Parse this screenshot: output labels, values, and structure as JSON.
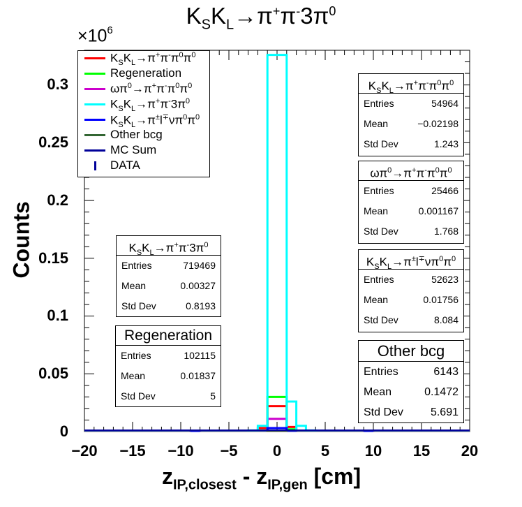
{
  "title": "K_S K_L → π⁺π⁻3π⁰",
  "title_parts": {
    "a": "K",
    "a_sub": "S",
    "b": "K",
    "b_sub": "L",
    "c": "→π",
    "c_sup1": "+",
    "d": "π",
    "d_sup": "-",
    "e": "3π",
    "e_sup": "0"
  },
  "axes": {
    "xlabel": {
      "a": "z",
      "a_sub": "IP,closest",
      "b": " - z",
      "b_sub": "IP,gen",
      "c": " [cm]"
    },
    "ylabel": "Counts",
    "exponent": {
      "base": "×10",
      "power": "6"
    },
    "xlim": [
      -20,
      20
    ],
    "ylim": [
      0,
      0.33
    ],
    "xticks": [
      "−20",
      "−15",
      "−10",
      "−5",
      "0",
      "5",
      "10",
      "15",
      "20"
    ],
    "yticks": [
      "0",
      "0.05",
      "0.1",
      "0.15",
      "0.2",
      "0.25",
      "0.3"
    ]
  },
  "chart_data": {
    "type": "histogram",
    "y_scale_factor": 1000000,
    "bin_width": 2,
    "series": [
      {
        "name": "K_S K_L → π⁺π⁻π⁰π⁰",
        "color": "#ff0000",
        "bins": [
          [
            -2,
            0.003
          ],
          [
            -1,
            0.022
          ],
          [
            1,
            0.004
          ]
        ]
      },
      {
        "name": "Regeneration",
        "color": "#00ff00",
        "bins": [
          [
            -2,
            0.001
          ],
          [
            -1,
            0.03
          ],
          [
            1,
            0.002
          ]
        ]
      },
      {
        "name": "ωπ⁰ → π⁺π⁻π⁰π⁰",
        "color": "#cc00cc",
        "bins": [
          [
            -1,
            0.011
          ]
        ]
      },
      {
        "name": "K_S K_L → π⁺π⁻3π⁰",
        "color": "#00ffff",
        "bins": [
          [
            -3,
            0.001
          ],
          [
            -2,
            0.005
          ],
          [
            -1,
            0.326
          ],
          [
            1,
            0.026
          ],
          [
            2,
            0.005
          ],
          [
            3,
            0.001
          ]
        ]
      },
      {
        "name": "K_S K_L → π^±l^∓νπ⁰π⁰",
        "color": "#0000ff",
        "bins": [
          [
            -9,
            0.0005
          ],
          [
            -1,
            0.003
          ],
          [
            1,
            0.0007
          ],
          [
            9,
            0.0005
          ]
        ]
      },
      {
        "name": "Other bcg",
        "color": "#336633",
        "bins": [
          [
            -1,
            0.0008
          ]
        ]
      },
      {
        "name": "MC Sum",
        "color": "#000099",
        "bins": []
      },
      {
        "name": "DATA",
        "color": "#000099",
        "bins": []
      }
    ]
  },
  "legend": [
    {
      "name_parts": [
        "K",
        "S",
        "K",
        "L",
        "→π",
        "+",
        "π",
        "-",
        "π",
        "0",
        "π",
        "0"
      ],
      "label": "K_S K_L → π⁺π⁻π⁰π⁰",
      "color": "#ff0000",
      "kind": "line"
    },
    {
      "label": "Regeneration",
      "color": "#00ff00",
      "kind": "line"
    },
    {
      "label": "ωπ⁰→π⁺π⁻π⁰π⁰",
      "color": "#cc00cc",
      "kind": "line"
    },
    {
      "label": "K_S K_L→π⁺π⁻3π⁰",
      "color": "#00ffff",
      "kind": "line"
    },
    {
      "label": "K_S K_L→π^±l^∓νπ⁰π⁰",
      "color": "#0000ff",
      "kind": "line"
    },
    {
      "label": "Other bcg",
      "color": "#336633",
      "kind": "line"
    },
    {
      "label": "MC Sum",
      "color": "#000099",
      "kind": "line"
    },
    {
      "label": "DATA",
      "color": "#000099",
      "kind": "err"
    }
  ],
  "stats_boxes": [
    {
      "id": "pipi3pi0",
      "title": "K_S K_L→π⁺π⁻3π⁰",
      "entries": "719469",
      "mean": "0.00327",
      "stddev": "0.8193"
    },
    {
      "id": "regen",
      "title": "Regeneration",
      "entries": "102115",
      "mean": "0.01837",
      "stddev": "5"
    },
    {
      "id": "pipipi0pi0",
      "title": "K_S K_L→π⁺π⁻π⁰π⁰",
      "entries": "54964",
      "mean": "−0.02198",
      "stddev": "1.243"
    },
    {
      "id": "omega",
      "title": "ωπ⁰→π⁺π⁻π⁰π⁰",
      "entries": "25466",
      "mean": "0.001167",
      "stddev": "1.768"
    },
    {
      "id": "semilep",
      "title": "K_S K_L→π^±l^∓νπ⁰π⁰",
      "entries": "52623",
      "mean": "0.01756",
      "stddev": "8.084"
    },
    {
      "id": "other",
      "title": "Other bcg",
      "entries": "6143",
      "mean": "0.1472",
      "stddev": "5.691"
    }
  ],
  "stats_labels": {
    "entries": "Entries",
    "mean": "Mean",
    "stddev": "Std Dev"
  }
}
